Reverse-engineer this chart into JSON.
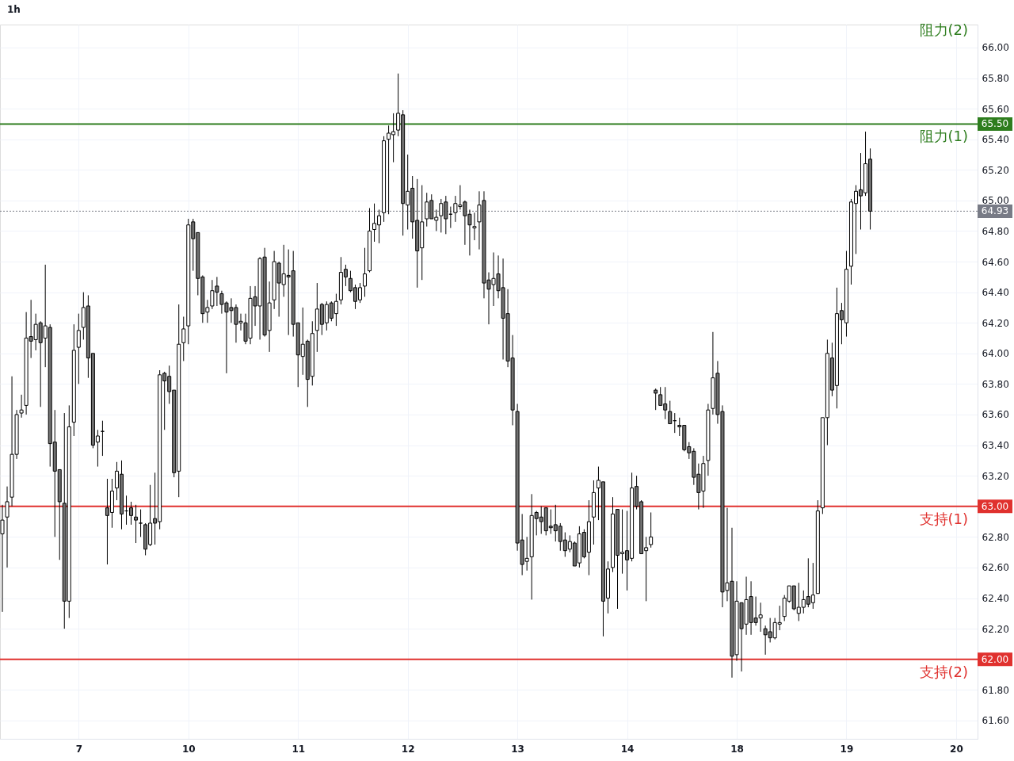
{
  "chart_data": {
    "type": "candlestick",
    "title": "1h",
    "annotations": [
      "阻力(2)",
      {
        "text": "阻力(1)",
        "y": 65.5
      },
      {
        "text": "支持(1)",
        "y": 63.0
      },
      {
        "text": "支持(2)",
        "y": 62.0
      }
    ],
    "color": "#000000",
    "categories": [
      null,
      null,
      null,
      null,
      null,
      null,
      null,
      null,
      null,
      null,
      null,
      null,
      null,
      null,
      null,
      null,
      "7",
      null,
      null,
      null,
      null,
      null,
      null,
      null,
      null,
      null,
      null,
      null,
      null,
      null,
      null,
      null,
      null,
      null,
      null,
      null,
      null,
      null,
      null,
      "10",
      null,
      null,
      null,
      null,
      null,
      null,
      null,
      null,
      null,
      null,
      null,
      null,
      null,
      null,
      null,
      null,
      null,
      null,
      null,
      null,
      null,
      null,
      "11",
      null,
      null,
      null,
      null,
      null,
      null,
      null,
      null,
      null,
      null,
      null,
      null,
      null,
      null,
      null,
      null,
      null,
      null,
      null,
      null,
      null,
      null,
      "12",
      null,
      null,
      null,
      null,
      null,
      null,
      null,
      null,
      null,
      null,
      null,
      null,
      null,
      null,
      null,
      null,
      null,
      null,
      null,
      null,
      null,
      null,
      "13",
      null,
      null,
      null,
      null,
      null,
      null,
      null,
      null,
      null,
      null,
      null,
      null,
      null,
      null,
      null,
      null,
      null,
      null,
      null,
      null,
      null,
      null,
      "14",
      null,
      null,
      null,
      null,
      null,
      null,
      null,
      null,
      null,
      null,
      null,
      null,
      null,
      null,
      null,
      null,
      null,
      null,
      null,
      null,
      null,
      null,
      "18",
      null,
      null,
      null,
      null,
      null,
      null,
      null,
      null,
      null,
      null,
      null,
      null,
      null,
      null,
      null,
      null,
      null,
      null,
      null,
      null,
      null,
      null,
      "19",
      null,
      null,
      null,
      null,
      null,
      null,
      null,
      null,
      null,
      null,
      null,
      null,
      null,
      null,
      null,
      null,
      null,
      null,
      null,
      null,
      null,
      null,
      "20",
      null,
      null,
      null,
      null
    ],
    "ohlc": [
      [
        62.82,
        63.01,
        62.31,
        62.91
      ],
      [
        62.93,
        63.13,
        62.6,
        63.03
      ],
      [
        63.06,
        63.85,
        63.0,
        63.34
      ],
      [
        63.34,
        63.63,
        63.31,
        63.6
      ],
      [
        63.61,
        63.73,
        63.58,
        63.63
      ],
      [
        63.66,
        64.27,
        63.6,
        64.1
      ],
      [
        64.11,
        64.35,
        63.97,
        64.08
      ],
      [
        64.09,
        64.26,
        64.02,
        64.19
      ],
      [
        64.2,
        64.21,
        63.65,
        64.07
      ],
      [
        64.1,
        64.58,
        63.91,
        64.18
      ],
      [
        64.17,
        64.19,
        63.26,
        63.41
      ],
      [
        63.42,
        63.63,
        62.8,
        63.23
      ],
      [
        63.24,
        63.24,
        62.65,
        63.03
      ],
      [
        63.02,
        63.61,
        62.2,
        62.38
      ],
      [
        62.38,
        63.66,
        62.27,
        63.52
      ],
      [
        63.55,
        64.19,
        63.46,
        64.02
      ],
      [
        64.04,
        64.26,
        63.8,
        64.15
      ],
      [
        64.17,
        64.4,
        64.09,
        64.3
      ],
      [
        64.31,
        64.38,
        63.84,
        63.97
      ],
      [
        64.0,
        64.0,
        63.38,
        63.4
      ],
      [
        63.42,
        63.5,
        63.26,
        63.46
      ],
      [
        63.49,
        63.56,
        63.33,
        63.49
      ],
      [
        62.99,
        63.18,
        62.62,
        62.94
      ],
      [
        62.96,
        63.18,
        62.86,
        63.1
      ],
      [
        63.12,
        63.29,
        63.04,
        63.23
      ],
      [
        63.21,
        63.3,
        62.85,
        62.95
      ],
      [
        62.97,
        63.07,
        62.88,
        62.97
      ],
      [
        62.99,
        63.03,
        62.88,
        62.94
      ],
      [
        62.93,
        63.01,
        62.76,
        62.91
      ],
      [
        62.89,
        62.98,
        62.8,
        62.89
      ],
      [
        62.88,
        62.89,
        62.68,
        62.72
      ],
      [
        62.75,
        63.14,
        62.74,
        62.89
      ],
      [
        62.92,
        63.22,
        62.75,
        62.89
      ],
      [
        62.9,
        63.89,
        62.85,
        63.86
      ],
      [
        63.87,
        63.88,
        63.5,
        63.82
      ],
      [
        63.85,
        63.92,
        63.67,
        63.75
      ],
      [
        63.76,
        63.76,
        63.19,
        63.22
      ],
      [
        63.23,
        64.32,
        63.06,
        64.06
      ],
      [
        64.07,
        64.24,
        63.95,
        64.16
      ],
      [
        64.18,
        64.88,
        64.06,
        64.84
      ],
      [
        64.86,
        64.88,
        64.54,
        64.75
      ],
      [
        64.79,
        64.79,
        64.38,
        64.49
      ],
      [
        64.5,
        64.51,
        64.2,
        64.26
      ],
      [
        64.27,
        64.35,
        64.2,
        64.3
      ],
      [
        64.31,
        64.48,
        64.29,
        64.41
      ],
      [
        64.44,
        64.5,
        64.31,
        64.4
      ],
      [
        64.39,
        64.41,
        64.26,
        64.32
      ],
      [
        64.33,
        64.34,
        63.87,
        64.27
      ],
      [
        64.3,
        64.36,
        64.2,
        64.28
      ],
      [
        64.3,
        64.32,
        64.07,
        64.19
      ],
      [
        64.2,
        64.26,
        64.15,
        64.21
      ],
      [
        64.2,
        64.26,
        64.06,
        64.08
      ],
      [
        64.1,
        64.44,
        64.06,
        64.36
      ],
      [
        64.37,
        64.44,
        64.18,
        64.31
      ],
      [
        64.31,
        64.63,
        64.09,
        64.62
      ],
      [
        64.63,
        64.69,
        64.11,
        64.12
      ],
      [
        64.15,
        64.47,
        64.01,
        64.33
      ],
      [
        64.35,
        64.67,
        64.29,
        64.6
      ],
      [
        64.59,
        64.6,
        64.24,
        64.46
      ],
      [
        64.45,
        64.71,
        64.37,
        64.52
      ],
      [
        64.51,
        64.68,
        64.12,
        64.5
      ],
      [
        64.54,
        64.67,
        64.11,
        64.19
      ],
      [
        64.2,
        64.2,
        63.78,
        63.99
      ],
      [
        63.98,
        64.3,
        63.86,
        64.06
      ],
      [
        64.08,
        64.09,
        63.65,
        63.83
      ],
      [
        63.85,
        64.21,
        63.79,
        64.13
      ],
      [
        64.15,
        64.46,
        64.01,
        64.29
      ],
      [
        64.32,
        64.33,
        64.12,
        64.19
      ],
      [
        64.2,
        64.34,
        64.15,
        64.32
      ],
      [
        64.33,
        64.34,
        64.21,
        64.23
      ],
      [
        64.26,
        64.39,
        64.18,
        64.34
      ],
      [
        64.35,
        64.63,
        64.32,
        64.53
      ],
      [
        64.55,
        64.58,
        64.44,
        64.5
      ],
      [
        64.49,
        64.54,
        64.4,
        64.41
      ],
      [
        64.43,
        64.45,
        64.29,
        64.34
      ],
      [
        64.35,
        64.46,
        64.33,
        64.43
      ],
      [
        64.44,
        64.69,
        64.37,
        64.52
      ],
      [
        64.54,
        64.95,
        64.53,
        64.8
      ],
      [
        64.81,
        64.98,
        64.73,
        64.85
      ],
      [
        64.84,
        64.94,
        64.72,
        64.9
      ],
      [
        64.92,
        65.42,
        64.86,
        65.39
      ],
      [
        65.4,
        65.49,
        64.91,
        65.44
      ],
      [
        65.43,
        65.57,
        65.25,
        65.45
      ],
      [
        65.46,
        65.83,
        65.42,
        65.57
      ],
      [
        65.56,
        65.59,
        64.77,
        64.98
      ],
      [
        64.97,
        65.3,
        64.81,
        65.06
      ],
      [
        65.08,
        65.16,
        64.75,
        64.86
      ],
      [
        64.87,
        65.14,
        64.43,
        64.67
      ],
      [
        64.69,
        65.1,
        64.48,
        64.86
      ],
      [
        64.88,
        65.05,
        64.83,
        64.99
      ],
      [
        65.0,
        65.04,
        64.88,
        64.88
      ],
      [
        64.87,
        64.94,
        64.8,
        64.89
      ],
      [
        64.9,
        65.01,
        64.79,
        64.98
      ],
      [
        64.99,
        65.03,
        64.78,
        64.88
      ],
      [
        64.91,
        64.96,
        64.82,
        64.91
      ],
      [
        64.92,
        65.03,
        64.86,
        64.98
      ],
      [
        64.96,
        65.1,
        64.94,
        64.97
      ],
      [
        64.99,
        65.0,
        64.71,
        64.9
      ],
      [
        64.91,
        64.94,
        64.64,
        64.84
      ],
      [
        64.82,
        64.92,
        64.74,
        64.83
      ],
      [
        64.86,
        65.06,
        64.68,
        64.97
      ],
      [
        65.0,
        65.06,
        64.36,
        64.46
      ],
      [
        64.48,
        64.53,
        64.19,
        64.42
      ],
      [
        64.45,
        64.66,
        64.31,
        64.49
      ],
      [
        64.52,
        64.64,
        64.36,
        64.41
      ],
      [
        64.43,
        64.62,
        63.96,
        64.23
      ],
      [
        64.26,
        64.42,
        63.91,
        63.95
      ],
      [
        63.97,
        64.12,
        63.53,
        63.63
      ],
      [
        63.62,
        63.67,
        62.71,
        62.76
      ],
      [
        62.78,
        62.95,
        62.55,
        62.62
      ],
      [
        62.64,
        62.8,
        62.58,
        62.66
      ],
      [
        62.67,
        63.08,
        62.39,
        62.94
      ],
      [
        62.96,
        62.97,
        62.81,
        62.92
      ],
      [
        62.93,
        63.0,
        62.82,
        62.9
      ],
      [
        62.99,
        62.99,
        62.81,
        62.84
      ],
      [
        62.87,
        62.98,
        62.82,
        62.86
      ],
      [
        62.88,
        63.01,
        62.77,
        62.84
      ],
      [
        62.87,
        62.89,
        62.71,
        62.77
      ],
      [
        62.78,
        62.83,
        62.67,
        62.71
      ],
      [
        62.72,
        62.81,
        62.7,
        62.77
      ],
      [
        62.76,
        62.77,
        62.61,
        62.61
      ],
      [
        62.63,
        62.87,
        62.6,
        62.82
      ],
      [
        62.83,
        62.85,
        62.66,
        62.67
      ],
      [
        62.7,
        63.04,
        62.55,
        62.9
      ],
      [
        62.93,
        63.17,
        62.75,
        63.09
      ],
      [
        63.12,
        63.26,
        62.91,
        63.17
      ],
      [
        63.16,
        63.16,
        62.15,
        62.38
      ],
      [
        62.4,
        62.64,
        62.3,
        62.59
      ],
      [
        62.6,
        63.06,
        62.57,
        62.95
      ],
      [
        62.98,
        62.98,
        62.33,
        62.68
      ],
      [
        62.69,
        62.98,
        62.56,
        62.7
      ],
      [
        62.71,
        62.97,
        62.45,
        62.65
      ],
      [
        62.66,
        63.22,
        62.64,
        63.12
      ],
      [
        63.13,
        63.2,
        62.98,
        63.0
      ],
      [
        63.03,
        63.04,
        62.69,
        62.69
      ],
      [
        62.71,
        62.8,
        62.38,
        62.73
      ],
      [
        62.75,
        62.96,
        62.73,
        62.8
      ],
      [
        63.76,
        63.77,
        63.63,
        63.74
      ],
      [
        63.73,
        63.78,
        63.66,
        63.66
      ],
      [
        63.67,
        63.78,
        63.57,
        63.63
      ],
      [
        63.62,
        63.69,
        63.54,
        63.54
      ],
      [
        63.56,
        63.61,
        63.48,
        63.56
      ],
      [
        63.53,
        63.58,
        63.46,
        63.52
      ],
      [
        63.53,
        63.53,
        63.36,
        63.37
      ],
      [
        63.39,
        63.42,
        63.31,
        63.35
      ],
      [
        63.36,
        63.38,
        63.14,
        63.19
      ],
      [
        63.21,
        63.28,
        62.98,
        63.09
      ],
      [
        63.1,
        63.33,
        62.99,
        63.28
      ],
      [
        63.3,
        63.67,
        63.2,
        63.63
      ],
      [
        63.64,
        64.14,
        63.6,
        63.84
      ],
      [
        63.87,
        63.95,
        63.54,
        63.6
      ],
      [
        63.62,
        63.66,
        62.34,
        62.44
      ],
      [
        62.45,
        62.99,
        62.38,
        62.5
      ],
      [
        62.51,
        62.86,
        61.88,
        62.02
      ],
      [
        62.03,
        62.51,
        61.99,
        62.38
      ],
      [
        62.37,
        62.37,
        61.92,
        62.2
      ],
      [
        62.23,
        62.54,
        62.16,
        62.39
      ],
      [
        62.41,
        62.51,
        62.16,
        62.24
      ],
      [
        62.27,
        62.41,
        62.22,
        62.24
      ],
      [
        62.27,
        62.37,
        62.18,
        62.29
      ],
      [
        62.2,
        62.22,
        62.03,
        62.16
      ],
      [
        62.18,
        62.27,
        62.11,
        62.14
      ],
      [
        62.14,
        62.27,
        62.13,
        62.24
      ],
      [
        62.23,
        62.35,
        62.19,
        62.24
      ],
      [
        62.28,
        62.42,
        62.25,
        62.4
      ],
      [
        62.38,
        62.48,
        62.37,
        62.48
      ],
      [
        62.48,
        62.48,
        62.32,
        62.33
      ],
      [
        62.3,
        62.5,
        62.25,
        62.34
      ],
      [
        62.34,
        62.45,
        62.3,
        62.39
      ],
      [
        62.41,
        62.66,
        62.34,
        62.36
      ],
      [
        62.37,
        62.63,
        62.33,
        62.42
      ],
      [
        62.43,
        63.04,
        62.43,
        62.97
      ],
      [
        62.99,
        63.58,
        62.95,
        63.58
      ],
      [
        63.58,
        64.09,
        63.4,
        64.0
      ],
      [
        63.97,
        64.07,
        63.72,
        63.76
      ],
      [
        63.79,
        64.43,
        63.64,
        64.26
      ],
      [
        64.28,
        64.33,
        64.06,
        64.22
      ],
      [
        64.2,
        64.67,
        64.11,
        64.55
      ],
      [
        64.57,
        65.01,
        64.45,
        64.99
      ],
      [
        64.98,
        65.1,
        64.65,
        65.06
      ],
      [
        65.07,
        65.31,
        64.81,
        65.03
      ],
      [
        65.05,
        65.45,
        65.03,
        65.24
      ],
      [
        65.27,
        65.34,
        64.81,
        64.93
      ],
      null,
      null,
      null,
      null,
      null,
      null,
      null,
      null,
      null,
      null,
      null,
      null,
      null,
      null,
      null,
      null,
      null,
      null,
      null,
      null,
      null,
      null
    ],
    "colors": [
      "#ffffff",
      "#ffffff",
      "#ffffff",
      "#ffffff",
      "#ffffff",
      "#ffffff",
      "#707070",
      "#ffffff",
      "#707070",
      "#ffffff",
      "#707070",
      "#707070",
      "#707070",
      "#707070",
      "#ffffff",
      "#ffffff",
      "#ffffff",
      "#ffffff",
      "#707070",
      "#707070",
      "#ffffff",
      "#000000",
      "#707070",
      "#ffffff",
      "#ffffff",
      "#707070",
      "#000000",
      "#707070",
      "#707070",
      "#000000",
      "#707070",
      "#ffffff",
      "#707070",
      "#ffffff",
      "#707070",
      "#707070",
      "#707070",
      "#ffffff",
      "#ffffff",
      "#ffffff",
      "#707070",
      "#707070",
      "#707070",
      "#ffffff",
      "#ffffff",
      "#707070",
      "#707070",
      "#707070",
      "#707070",
      "#707070",
      "#ffffff",
      "#707070",
      "#ffffff",
      "#707070",
      "#ffffff",
      "#707070",
      "#ffffff",
      "#ffffff",
      "#707070",
      "#ffffff",
      "#707070",
      "#707070",
      "#707070",
      "#ffffff",
      "#707070",
      "#ffffff",
      "#ffffff",
      "#707070",
      "#ffffff",
      "#707070",
      "#ffffff",
      "#ffffff",
      "#707070",
      "#707070",
      "#707070",
      "#ffffff",
      "#ffffff",
      "#ffffff",
      "#ffffff",
      "#ffffff",
      "#ffffff",
      "#ffffff",
      "#ffffff",
      "#ffffff",
      "#707070",
      "#ffffff",
      "#707070",
      "#707070",
      "#ffffff",
      "#ffffff",
      "#707070",
      "#ffffff",
      "#ffffff",
      "#707070",
      "#000000",
      "#ffffff",
      "#ffffff",
      "#707070",
      "#707070",
      "#ffffff",
      "#ffffff",
      "#707070",
      "#707070",
      "#ffffff",
      "#707070",
      "#707070",
      "#707070",
      "#707070",
      "#707070",
      "#707070",
      "#ffffff",
      "#ffffff",
      "#707070",
      "#707070",
      "#707070",
      "#707070",
      "#707070",
      "#707070",
      "#707070",
      "#ffffff",
      "#707070",
      "#ffffff",
      "#707070",
      "#ffffff",
      "#ffffff",
      "#ffffff",
      "#707070",
      "#ffffff",
      "#ffffff",
      "#707070",
      "#ffffff",
      "#707070",
      "#ffffff",
      "#707070",
      "#707070",
      "#ffffff",
      "#ffffff",
      "#707070",
      "#707070",
      "#707070",
      "#707070",
      "#000000",
      "#707070",
      "#707070",
      "#707070",
      "#707070",
      "#707070",
      "#ffffff",
      "#ffffff",
      "#ffffff",
      "#707070",
      "#707070",
      "#ffffff",
      "#707070",
      "#ffffff",
      "#707070",
      "#ffffff",
      "#707070",
      "#707070",
      "#ffffff",
      "#707070",
      "#707070",
      "#ffffff",
      "#ffffff",
      "#ffffff",
      "#ffffff",
      "#707070",
      "#ffffff",
      "#ffffff",
      "#707070",
      "#ffffff",
      "#ffffff",
      "#ffffff",
      "#ffffff",
      "#707070",
      "#ffffff",
      "#707070",
      "#ffffff",
      "#ffffff",
      "#ffffff",
      "#707070",
      "#ffffff",
      "#707070",
      null,
      null,
      null,
      null,
      null,
      null,
      null,
      null,
      null,
      null,
      null,
      null,
      null,
      null,
      null,
      null,
      null,
      null,
      null,
      null,
      null,
      null
    ],
    "ylim": [
      61.48,
      66.15
    ],
    "yticks": [
      {
        "value": 61.6,
        "label": "61.60"
      },
      {
        "value": 61.8,
        "label": "61.80"
      },
      {
        "value": 62.2,
        "label": "62.20"
      },
      {
        "value": 62.4,
        "label": "62.40"
      },
      {
        "value": 62.6,
        "label": "62.60"
      },
      {
        "value": 62.8,
        "label": "62.80"
      },
      {
        "value": 63.2,
        "label": "63.20"
      },
      {
        "value": 63.4,
        "label": "63.40"
      },
      {
        "value": 63.6,
        "label": "63.60"
      },
      {
        "value": 63.8,
        "label": "63.80"
      },
      {
        "value": 64.0,
        "label": "64.00"
      },
      {
        "value": 64.2,
        "label": "64.20"
      },
      {
        "value": 64.4,
        "label": "64.40"
      },
      {
        "value": 64.6,
        "label": "64.60"
      },
      {
        "value": 64.8,
        "label": "64.80"
      },
      {
        "value": 65.0,
        "label": "65.00"
      },
      {
        "value": 65.2,
        "label": "65.20"
      },
      {
        "value": 65.4,
        "label": "65.40"
      },
      {
        "value": 65.6,
        "label": "65.60"
      },
      {
        "value": 65.8,
        "label": "65.80"
      },
      {
        "value": 66.0,
        "label": "66.00"
      }
    ],
    "ref_lines": [
      {
        "axis": "y",
        "value": 65.5,
        "label": "65.50",
        "color": "#2e7d1e",
        "line_style": "solid"
      },
      {
        "axis": "y",
        "value": 63.0,
        "label": "63.00",
        "color": "#e0312e",
        "line_style": "solid"
      },
      {
        "axis": "y",
        "value": 62.0,
        "label": "62.00",
        "color": "#e0312e",
        "line_style": "solid"
      },
      {
        "axis": "y",
        "value": 64.93,
        "label": "64.93",
        "color": "#787b86",
        "line_style": "dotted"
      }
    ],
    "grid": true
  }
}
